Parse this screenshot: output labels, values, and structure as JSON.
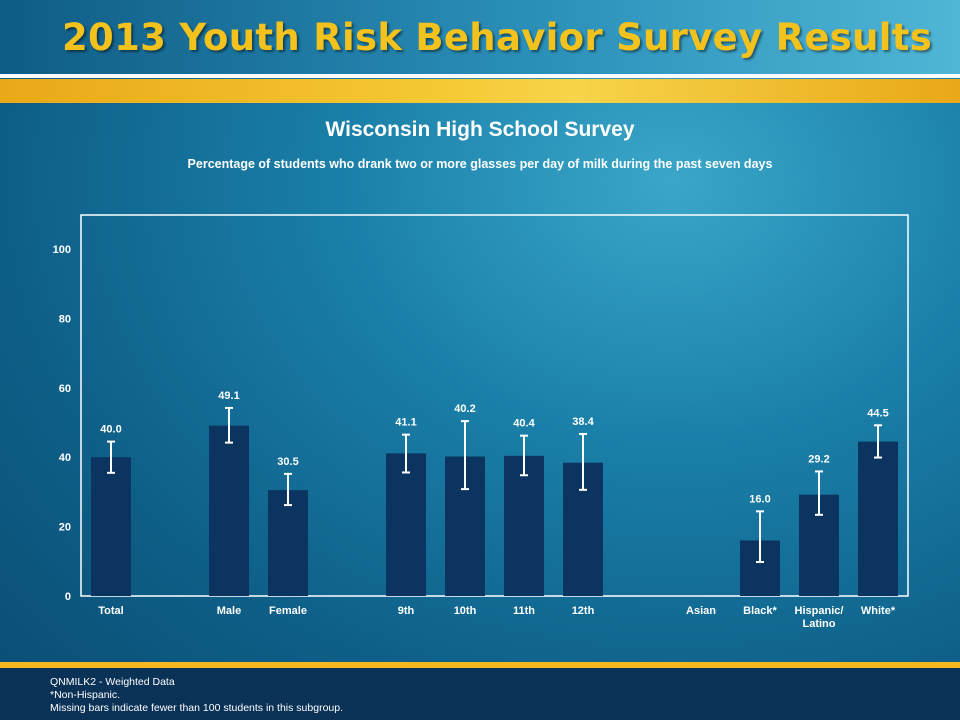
{
  "header": {
    "banner_title": "2013 Youth Risk Behavior Survey Results"
  },
  "chart_data": {
    "type": "bar",
    "title": "Wisconsin High School Survey",
    "subtitle": "Percentage of students who drank two or more glasses per day of milk during the past seven days",
    "xlabel": "",
    "ylabel": "",
    "ylim": [
      0,
      110
    ],
    "yticks": [
      0,
      20,
      40,
      60,
      80,
      100
    ],
    "grid": false,
    "bar_color": "#0b3460",
    "categories": [
      {
        "label": "Total",
        "value": 40.0,
        "ci": [
          35.5,
          44.5
        ],
        "value_label": "40.0"
      },
      {
        "label": "",
        "value": null
      },
      {
        "label": "Male",
        "value": 49.1,
        "ci": [
          44.2,
          54.2
        ],
        "value_label": "49.1"
      },
      {
        "label": "Female",
        "value": 30.5,
        "ci": [
          26.2,
          35.2
        ],
        "value_label": "30.5"
      },
      {
        "label": "",
        "value": null
      },
      {
        "label": "9th",
        "value": 41.1,
        "ci": [
          35.6,
          46.5
        ],
        "value_label": "41.1"
      },
      {
        "label": "10th",
        "value": 40.2,
        "ci": [
          30.8,
          50.4
        ],
        "value_label": "40.2"
      },
      {
        "label": "11th",
        "value": 40.4,
        "ci": [
          34.8,
          46.2
        ],
        "value_label": "40.4"
      },
      {
        "label": "12th",
        "value": 38.4,
        "ci": [
          30.6,
          46.7
        ],
        "value_label": "38.4"
      },
      {
        "label": "",
        "value": null
      },
      {
        "label": "Asian",
        "value": null
      },
      {
        "label": "Black*",
        "value": 16.0,
        "ci": [
          9.8,
          24.4
        ],
        "value_label": "16.0"
      },
      {
        "label": "Hispanic/\nLatino",
        "value": 29.2,
        "ci": [
          23.4,
          35.9
        ],
        "value_label": "29.2"
      },
      {
        "label": "White*",
        "value": 44.5,
        "ci": [
          39.9,
          49.2
        ],
        "value_label": "44.5"
      }
    ]
  },
  "footer": {
    "line1": "QNMILK2 - Weighted Data",
    "line2": "*Non-Hispanic.",
    "line3": "Missing bars indicate fewer than 100 students in this subgroup."
  }
}
